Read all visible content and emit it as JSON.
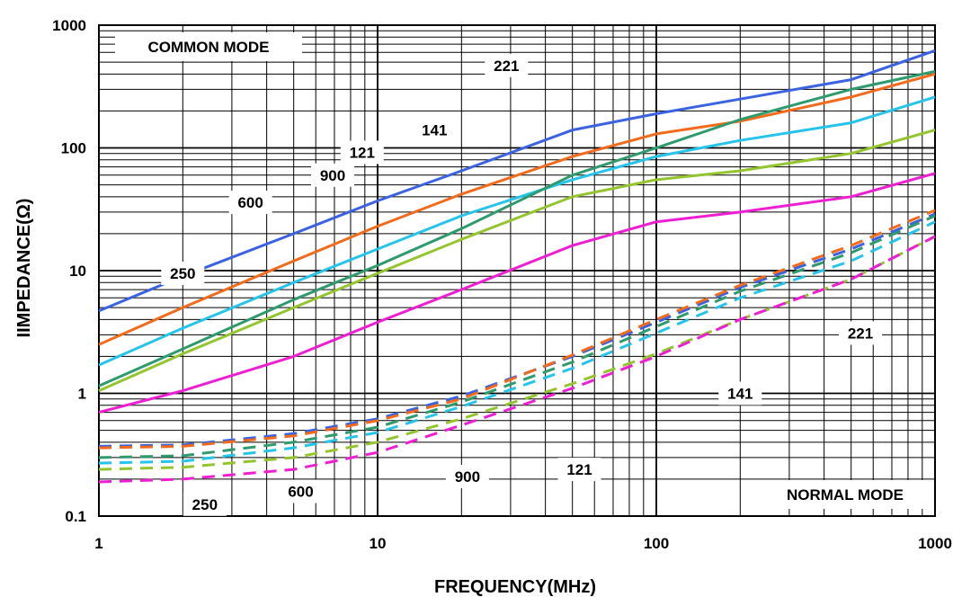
{
  "chart_data": {
    "type": "line",
    "title": "",
    "xlabel": "FREQUENCY(MHz)",
    "ylabel": "IIMPEDANCE(Ω)",
    "xscale": "log",
    "yscale": "log",
    "xlim": [
      1,
      1000
    ],
    "ylim": [
      0.1,
      1000
    ],
    "grid": true,
    "x_ticks": [
      1,
      10,
      100,
      1000
    ],
    "x_tick_labels": [
      "1",
      "10",
      "100",
      "1000"
    ],
    "y_ticks": [
      0.1,
      1,
      10,
      100,
      1000
    ],
    "y_tick_labels": [
      "0.1",
      "1",
      "10",
      "100",
      "1000"
    ],
    "region_labels": {
      "common": "COMMON MODE",
      "normal": "NORMAL MODE"
    },
    "series": [
      {
        "name": "221",
        "mode": "common",
        "color": "#3b62e0",
        "style": "solid",
        "x": [
          1,
          2,
          5,
          10,
          20,
          50,
          100,
          200,
          500,
          1000
        ],
        "y": [
          4.7,
          9,
          20,
          37,
          65,
          140,
          190,
          250,
          360,
          620
        ]
      },
      {
        "name": "141",
        "mode": "common",
        "color": "#f26a1b",
        "style": "solid",
        "x": [
          1,
          2,
          5,
          10,
          20,
          50,
          100,
          200,
          500,
          1000
        ],
        "y": [
          2.5,
          5,
          12,
          23,
          42,
          85,
          130,
          165,
          260,
          400
        ]
      },
      {
        "name": "121",
        "mode": "common",
        "color": "#26c4ea",
        "style": "solid",
        "x": [
          1,
          2,
          5,
          10,
          20,
          50,
          100,
          200,
          500,
          1000
        ],
        "y": [
          1.7,
          3.4,
          8,
          15,
          28,
          55,
          85,
          115,
          160,
          260
        ]
      },
      {
        "name": "900",
        "mode": "common",
        "color": "#2e9a6e",
        "style": "solid",
        "x": [
          1,
          2,
          5,
          10,
          20,
          50,
          100,
          200,
          500,
          1000
        ],
        "y": [
          1.15,
          2.3,
          5.8,
          11,
          22,
          60,
          100,
          170,
          300,
          420
        ]
      },
      {
        "name": "600",
        "mode": "common",
        "color": "#94c42e",
        "style": "solid",
        "x": [
          1,
          2,
          5,
          10,
          20,
          50,
          100,
          200,
          500,
          1000
        ],
        "y": [
          1.05,
          2.1,
          5,
          9.5,
          18,
          40,
          55,
          65,
          90,
          140
        ]
      },
      {
        "name": "250",
        "mode": "common",
        "color": "#ee1ed2",
        "style": "solid",
        "x": [
          1,
          2,
          5,
          10,
          20,
          50,
          100,
          200,
          500,
          1000
        ],
        "y": [
          0.7,
          1.05,
          2,
          3.8,
          7,
          16,
          25,
          30,
          40,
          62
        ]
      },
      {
        "name": "221",
        "mode": "normal",
        "color": "#3b62e0",
        "style": "dashed",
        "x": [
          1,
          2,
          5,
          10,
          20,
          50,
          100,
          200,
          500,
          1000
        ],
        "y": [
          0.37,
          0.38,
          0.47,
          0.62,
          0.95,
          2.0,
          3.8,
          7.3,
          15,
          29
        ]
      },
      {
        "name": "141",
        "mode": "normal",
        "color": "#f26a1b",
        "style": "dashed",
        "x": [
          1,
          2,
          5,
          10,
          20,
          50,
          100,
          200,
          500,
          1000
        ],
        "y": [
          0.36,
          0.37,
          0.45,
          0.6,
          0.9,
          2.05,
          4.0,
          7.6,
          16,
          31
        ]
      },
      {
        "name": "121",
        "mode": "normal",
        "color": "#26c4ea",
        "style": "dashed",
        "x": [
          1,
          2,
          5,
          10,
          20,
          50,
          100,
          200,
          500,
          1000
        ],
        "y": [
          0.27,
          0.28,
          0.36,
          0.48,
          0.78,
          1.6,
          3.1,
          6.0,
          12,
          25
        ]
      },
      {
        "name": "900",
        "mode": "normal",
        "color": "#2e9a6e",
        "style": "dashed",
        "x": [
          1,
          2,
          5,
          10,
          20,
          50,
          100,
          200,
          500,
          1000
        ],
        "y": [
          0.3,
          0.31,
          0.4,
          0.53,
          0.85,
          1.8,
          3.5,
          6.8,
          14,
          28
        ]
      },
      {
        "name": "600",
        "mode": "normal",
        "color": "#94c42e",
        "style": "dashed",
        "x": [
          1,
          2,
          5,
          10,
          20,
          50,
          100,
          200,
          500,
          1000
        ],
        "y": [
          0.24,
          0.25,
          0.3,
          0.4,
          0.62,
          1.2,
          2.1,
          4.0,
          8.5,
          19
        ]
      },
      {
        "name": "250",
        "mode": "normal",
        "color": "#ee1ed2",
        "style": "dashed",
        "x": [
          1,
          2,
          5,
          10,
          20,
          50,
          100,
          200,
          500,
          1000
        ],
        "y": [
          0.19,
          0.2,
          0.24,
          0.33,
          0.55,
          1.1,
          2.0,
          4.0,
          8.5,
          19
        ]
      }
    ],
    "annotations": [
      {
        "text": "221",
        "x": 29,
        "y": 470
      },
      {
        "text": "141",
        "x": 16,
        "y": 140
      },
      {
        "text": "121",
        "x": 8.8,
        "y": 92
      },
      {
        "text": "900",
        "x": 6.9,
        "y": 60
      },
      {
        "text": "600",
        "x": 3.5,
        "y": 36
      },
      {
        "text": "250",
        "x": 2.0,
        "y": 9.5
      },
      {
        "text": "221",
        "x": 540,
        "y": 3.1
      },
      {
        "text": "141",
        "x": 200,
        "y": 1.0
      },
      {
        "text": "121",
        "x": 53,
        "y": 0.24
      },
      {
        "text": "900",
        "x": 21,
        "y": 0.21
      },
      {
        "text": "600",
        "x": 5.3,
        "y": 0.159
      },
      {
        "text": "250",
        "x": 2.4,
        "y": 0.125
      }
    ]
  }
}
